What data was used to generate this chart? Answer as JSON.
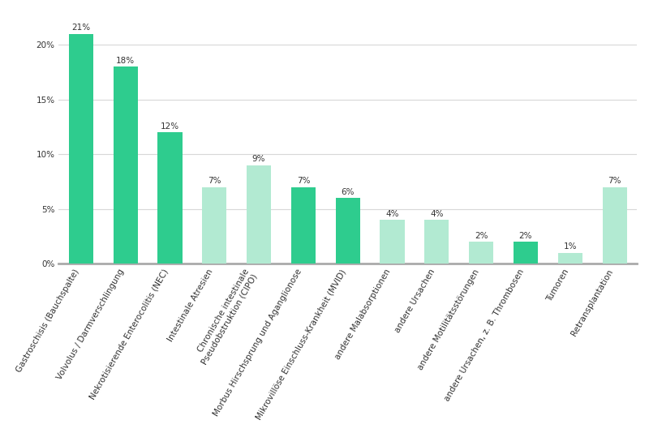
{
  "categories": [
    "Gastroschisis (Bauchspalte)",
    "Volvolus / Darmverschlingung",
    "Nekrotisierende Enterocolitis (NEC)",
    "Intestinale Atresien",
    "Chronische intestinale\nPseudobstruktion (CIPO)",
    "Morbus Hirschsprung und Aganglionose",
    "Mikrovillöse Einschluss-Krankheit (MVID)",
    "andere Malabsorptionen",
    "andere Ursachen",
    "andere Motilitätsstörungen",
    "andere Ursachen, z. B. Thrombosen",
    "Tumoren",
    "Retransplantation"
  ],
  "values": [
    21,
    18,
    12,
    7,
    9,
    7,
    6,
    4,
    4,
    2,
    2,
    1,
    7
  ],
  "colors": [
    "#2ecc8e",
    "#2ecc8e",
    "#2ecc8e",
    "#b2ead2",
    "#b2ead2",
    "#2ecc8e",
    "#2ecc8e",
    "#b2ead2",
    "#b2ead2",
    "#b2ead2",
    "#2ecc8e",
    "#b2ead2",
    "#b2ead2"
  ],
  "ylim": [
    0,
    23
  ],
  "yticks": [
    0,
    5,
    10,
    15,
    20
  ],
  "ytick_labels": [
    "0%",
    "5%",
    "10%",
    "15%",
    "20%"
  ],
  "background_color": "#ffffff",
  "grid_color": "#d8d8d8",
  "bottom_spine_color": "#aaaaaa",
  "bar_label_fontsize": 7.5,
  "tick_label_fontsize": 7.5,
  "bar_width": 0.55,
  "label_rotation": 60,
  "figsize": [
    8.0,
    5.34
  ],
  "dpi": 100
}
